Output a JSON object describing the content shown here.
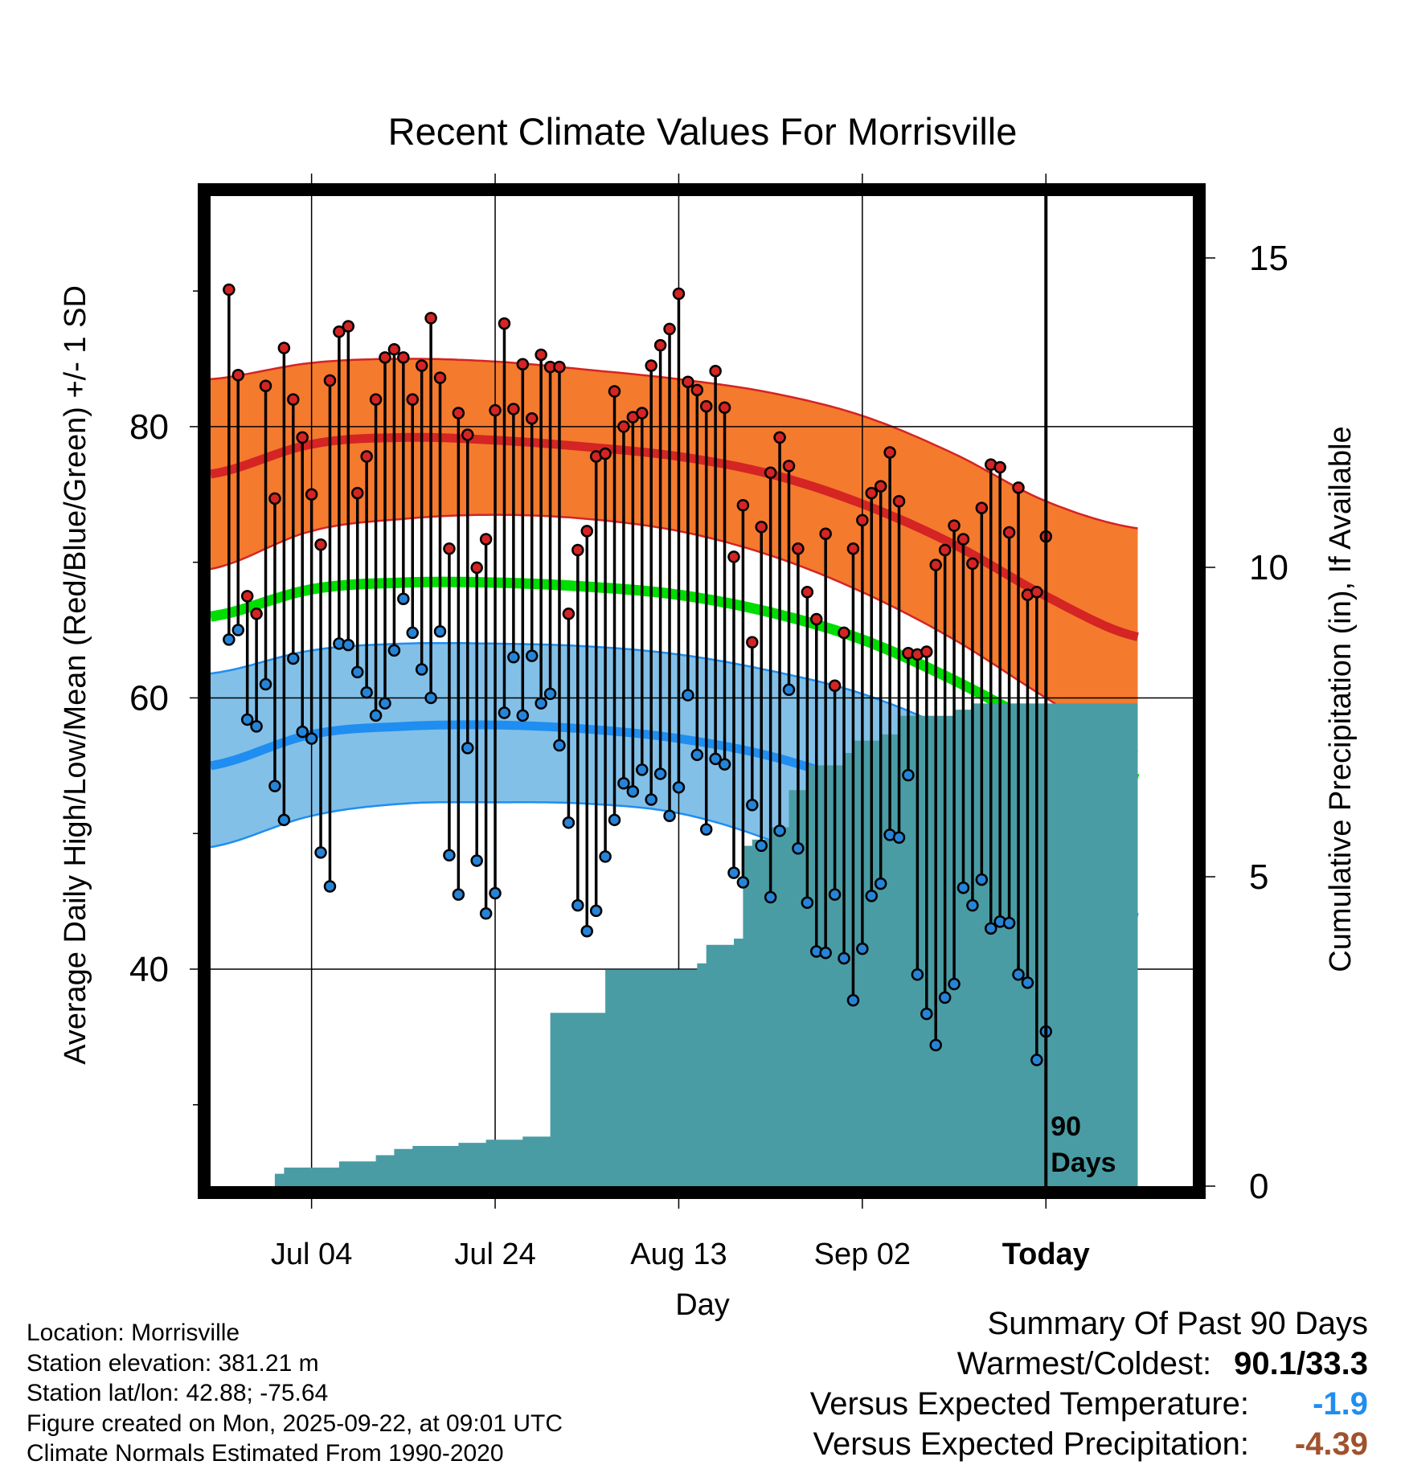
{
  "chart_data": {
    "type": "line",
    "title": "Recent Climate Values For Morrisville",
    "xlabel": "Day",
    "ylabel": "Average Daily High/Low/Mean (Red/Blue/Green) +/- 1 SD",
    "y2label": "Cumulative Precipitation (in), If Available",
    "xlim": [
      -11,
      96
    ],
    "ylim": [
      24,
      97
    ],
    "y2lim": [
      0,
      16
    ],
    "y_ticks": [
      {
        "value": 40,
        "label": "40"
      },
      {
        "value": 60,
        "label": "60"
      },
      {
        "value": 80,
        "label": "80"
      }
    ],
    "y_minor_ticks": [
      30,
      50,
      70,
      90
    ],
    "y2_ticks": [
      {
        "value": 0,
        "label": "0"
      },
      {
        "value": 5,
        "label": "5"
      },
      {
        "value": 10,
        "label": "10"
      },
      {
        "value": 15,
        "label": "15"
      }
    ],
    "x_ticks": [
      {
        "day": 0,
        "label": "Jul 04",
        "bold": false
      },
      {
        "day": 20,
        "label": "Jul 24",
        "bold": false
      },
      {
        "day": 40,
        "label": "Aug 13",
        "bold": false
      },
      {
        "day": 60,
        "label": "Sep 02",
        "bold": false
      },
      {
        "day": 80,
        "label": "Today",
        "bold": true
      }
    ],
    "today_day": 80,
    "today_label": [
      "90",
      "Days"
    ],
    "normals": {
      "days": [
        -11,
        0,
        10,
        20,
        30,
        40,
        50,
        60,
        70,
        80,
        90
      ],
      "high_mean": [
        76.5,
        78.7,
        79.2,
        79.0,
        78.5,
        77.8,
        76.5,
        74.3,
        71.3,
        67.5,
        64.5
      ],
      "high_upper": [
        83.5,
        84.7,
        85.0,
        84.8,
        84.2,
        83.5,
        82.5,
        80.8,
        78.0,
        74.5,
        72.5
      ],
      "high_lower": [
        69.5,
        72.3,
        73.2,
        73.5,
        73.2,
        72.3,
        70.5,
        67.8,
        64.3,
        60.0,
        56.0
      ],
      "mean": [
        66.0,
        68.0,
        68.5,
        68.5,
        68.2,
        67.6,
        66.3,
        64.3,
        61.3,
        57.7,
        54.0
      ],
      "low_mean": [
        55.0,
        57.3,
        57.9,
        58.0,
        57.7,
        57.0,
        55.7,
        53.5,
        50.5,
        46.5,
        43.8
      ],
      "low_upper": [
        61.8,
        63.5,
        64.0,
        64.0,
        63.8,
        63.2,
        62.0,
        60.3,
        57.5,
        53.5,
        51.5
      ],
      "low_lower": [
        49.0,
        51.3,
        52.2,
        52.3,
        52.2,
        51.5,
        49.5,
        46.5,
        42.5,
        38.0,
        36.0
      ]
    },
    "series": [
      {
        "name": "High",
        "color": "#d42424",
        "values": [
          90.1,
          83.8,
          67.5,
          66.2,
          83.0,
          74.7,
          85.8,
          82.0,
          79.2,
          75.0,
          71.3,
          83.4,
          87.0,
          87.4,
          75.1,
          77.8,
          82.0,
          85.1,
          85.7,
          85.1,
          82.0,
          84.5,
          88.0,
          83.6,
          71.0,
          81.0,
          79.4,
          69.6,
          71.7,
          81.2,
          87.6,
          81.3,
          84.6,
          80.6,
          85.3,
          84.4,
          84.4,
          66.2,
          70.9,
          72.3,
          77.8,
          78.0,
          82.6,
          80.0,
          80.7,
          81.0,
          84.5,
          86.0,
          87.2,
          89.8,
          83.3,
          82.7,
          81.5,
          84.1,
          81.4,
          70.4,
          74.2,
          64.1,
          72.6,
          76.6,
          79.2,
          77.1,
          71.0,
          67.8,
          65.8,
          72.1,
          60.9,
          64.8,
          71.0,
          73.1,
          75.1,
          75.6,
          78.1,
          74.5,
          63.3,
          63.2,
          63.4,
          69.8,
          70.9,
          72.7,
          71.7,
          69.9,
          74.0,
          77.2,
          77.0,
          72.2,
          75.5,
          67.6,
          67.8,
          71.9
        ]
      },
      {
        "name": "Low",
        "color": "#2684d8",
        "values": [
          64.3,
          65.0,
          58.4,
          57.9,
          61.0,
          53.5,
          51.0,
          62.9,
          57.5,
          57.0,
          48.6,
          46.1,
          64.0,
          63.9,
          61.9,
          60.4,
          58.7,
          59.6,
          63.5,
          67.3,
          64.8,
          62.1,
          60.0,
          64.9,
          48.4,
          45.5,
          56.3,
          48.0,
          44.1,
          45.6,
          58.9,
          63.0,
          58.7,
          63.1,
          59.6,
          60.3,
          56.5,
          50.8,
          44.7,
          42.8,
          44.3,
          48.3,
          51.0,
          53.7,
          53.1,
          54.7,
          52.5,
          54.4,
          51.3,
          53.4,
          60.2,
          55.8,
          50.3,
          55.5,
          55.1,
          47.1,
          46.4,
          52.1,
          49.1,
          45.3,
          50.2,
          60.6,
          48.9,
          44.9,
          41.3,
          41.2,
          45.5,
          40.8,
          37.7,
          41.5,
          45.4,
          46.3,
          49.9,
          49.7,
          54.3,
          39.6,
          36.7,
          34.4,
          37.9,
          38.9,
          46.0,
          44.7,
          46.6,
          43.0,
          43.5,
          43.4,
          39.6,
          39.0,
          33.3,
          35.4
        ]
      }
    ],
    "precip": {
      "days": [
        -10,
        -5,
        -4,
        -3,
        -1,
        2,
        3,
        6,
        7,
        9,
        10,
        11,
        15,
        16,
        18,
        19,
        21,
        22,
        23,
        25,
        26,
        27,
        32,
        33,
        37,
        38,
        41,
        42,
        43,
        46,
        47,
        48,
        50,
        52,
        54,
        58,
        59,
        62,
        63,
        64,
        69,
        70,
        71,
        72,
        74,
        85,
        90
      ],
      "values": [
        0.0,
        0.0,
        0.2,
        0.3,
        0.3,
        0.3,
        0.4,
        0.4,
        0.5,
        0.6,
        0.6,
        0.65,
        0.65,
        0.7,
        0.7,
        0.75,
        0.75,
        0.75,
        0.8,
        0.8,
        2.8,
        2.8,
        3.5,
        3.5,
        3.5,
        3.5,
        3.5,
        3.6,
        3.9,
        4.0,
        5.5,
        5.6,
        5.8,
        6.4,
        6.8,
        7.0,
        7.2,
        7.3,
        7.3,
        7.6,
        7.6,
        7.7,
        7.7,
        7.8,
        7.8,
        7.8,
        7.8
      ]
    }
  },
  "station": {
    "location": "Location: Morrisville",
    "elevation": "Station elevation: 381.21 m",
    "latlon": "Station lat/lon: 42.88; -75.64",
    "created": "Figure created on Mon, 2025-09-22, at 09:01 UTC",
    "normals_period": "Climate Normals Estimated From 1990-2020"
  },
  "summary": {
    "title": "Summary Of Past 90 Days",
    "warm_cold_label": "Warmest/Coldest:",
    "warm_cold_value": "90.1/33.3",
    "temp_label": "Versus Expected Temperature:",
    "temp_value": "-1.9",
    "precip_label": "Versus Expected Precipitation:",
    "precip_value": "-4.39"
  },
  "colors": {
    "high_band": "#f47a2e",
    "high_line": "#d42424",
    "mean_line": "#00dd00",
    "low_band": "#82c0e8",
    "low_line": "#1f8ef0",
    "precip_fill": "#4a9ca4",
    "temp_value": "#1f8ef0",
    "precip_value": "#a0522d"
  }
}
